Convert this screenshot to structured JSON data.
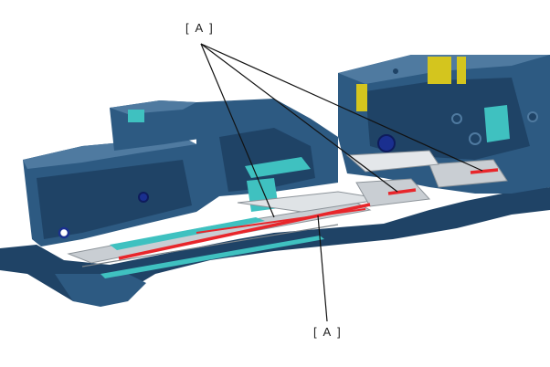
{
  "diagram": {
    "callout_top": "[ A ]",
    "callout_bottom": "[ A ]"
  },
  "colors": {
    "body_dark": "#1f4366",
    "body_mid": "#2d5a82",
    "body_light": "#4f7aa0",
    "rail_grey": "#c9ced3",
    "teal": "#3fc1c0",
    "yellow": "#d4c51e",
    "highlight_red": "#e8262b",
    "leader_line": "#111111"
  },
  "icons": {
    "assembly": "printer-carriage-assembly-illustration",
    "marker": "red-highlight-marker"
  }
}
